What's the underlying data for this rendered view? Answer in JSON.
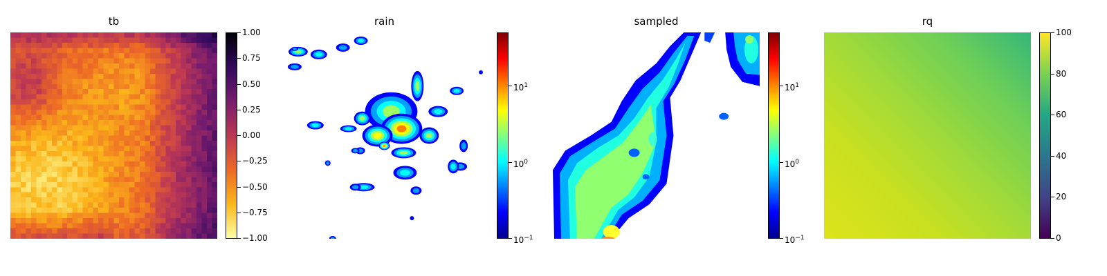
{
  "chart_data": [
    {
      "type": "heatmap",
      "title": "tb",
      "colormap": "inferno_r",
      "colorbar": {
        "scale": "linear",
        "range": [
          -1.0,
          1.0
        ],
        "ticks": [
          "1.00",
          "0.75",
          "0.50",
          "0.25",
          "0.00",
          "−0.25",
          "−0.50",
          "−0.75",
          "−1.00"
        ]
      }
    },
    {
      "type": "heatmap",
      "title": "rain",
      "colormap": "jet",
      "colorbar": {
        "scale": "log",
        "range": [
          0.1,
          50
        ],
        "ticks": [
          {
            "base": "10",
            "exp": "1"
          },
          {
            "base": "10",
            "exp": "0"
          },
          {
            "base": "10",
            "exp": "−1"
          }
        ]
      }
    },
    {
      "type": "heatmap",
      "title": "sampled",
      "colormap": "jet",
      "colorbar": {
        "scale": "log",
        "range": [
          0.1,
          50
        ],
        "ticks": [
          {
            "base": "10",
            "exp": "1"
          },
          {
            "base": "10",
            "exp": "0"
          },
          {
            "base": "10",
            "exp": "−1"
          }
        ]
      }
    },
    {
      "type": "heatmap",
      "title": "rq",
      "colormap": "viridis",
      "colorbar": {
        "scale": "linear",
        "range": [
          0,
          100
        ],
        "ticks": [
          "100",
          "80",
          "60",
          "40",
          "20",
          "0"
        ]
      }
    }
  ]
}
